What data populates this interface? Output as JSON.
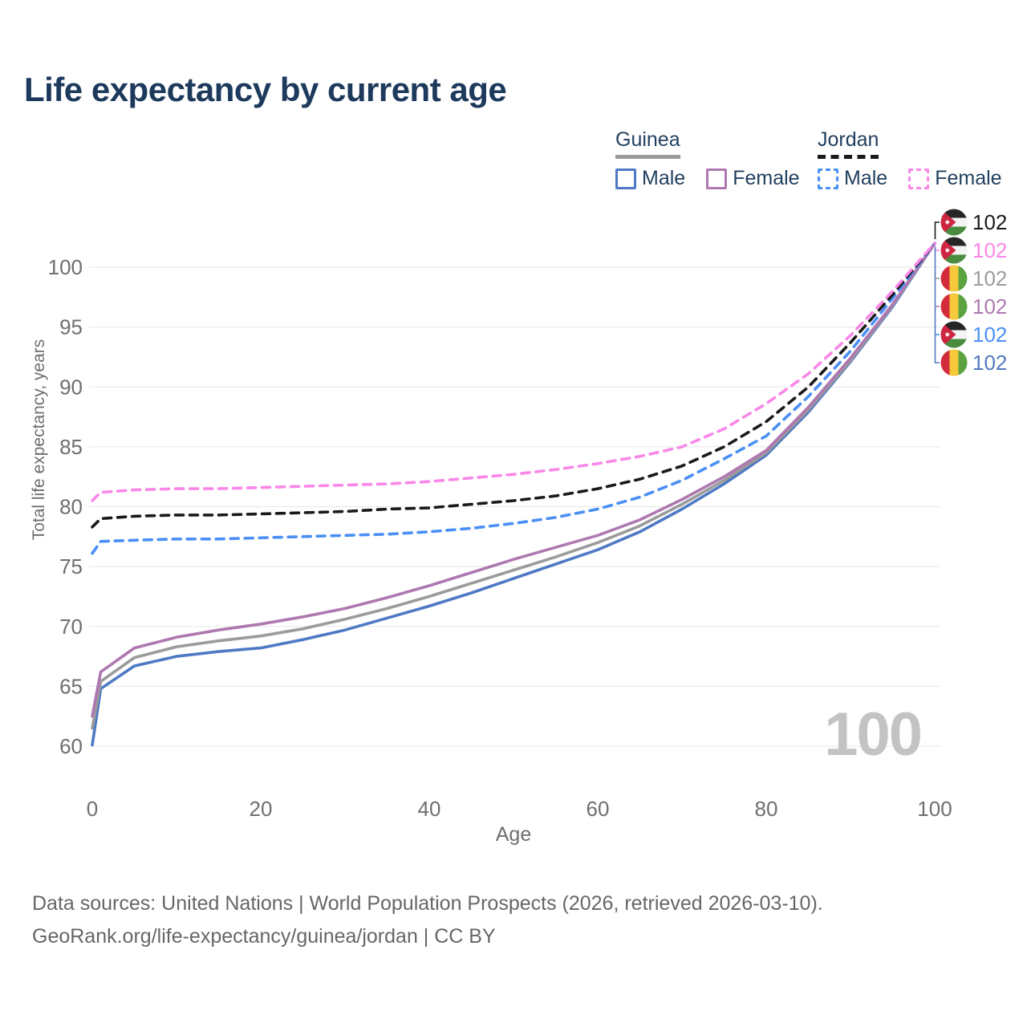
{
  "header": {
    "title": "Life expectancy by current age"
  },
  "legend": {
    "groups": [
      {
        "id": "guinea",
        "label": "Guinea",
        "line_style": "solid",
        "line_color": "#9b9b9b",
        "items": [
          {
            "label": "Male",
            "color": "#4e79c4",
            "style": "solid"
          },
          {
            "label": "Female",
            "color": "#ae78b0",
            "style": "solid"
          }
        ]
      },
      {
        "id": "jordan",
        "label": "Jordan",
        "line_style": "dashed",
        "line_color": "#1a1a1a",
        "items": [
          {
            "label": "Male",
            "color": "#4a8ff5",
            "style": "dashed"
          },
          {
            "label": "Female",
            "color": "#fa87e8",
            "style": "dashed"
          }
        ]
      }
    ]
  },
  "chart_data": {
    "type": "line",
    "title": "Life expectancy by current age",
    "xlabel": "Age",
    "ylabel": "Total life expectancy, years",
    "xlim": [
      0,
      100
    ],
    "ylim": [
      58.5,
      103.5
    ],
    "x_ticks": [
      0,
      20,
      40,
      60,
      80,
      100
    ],
    "y_ticks": [
      60,
      65,
      70,
      75,
      80,
      85,
      90,
      95,
      100
    ],
    "grid": "horizontal",
    "legend_position": "top-right",
    "watermark": "100",
    "ages": [
      0,
      1,
      5,
      10,
      15,
      20,
      25,
      30,
      35,
      40,
      45,
      50,
      55,
      60,
      65,
      70,
      75,
      80,
      85,
      90,
      95,
      100
    ],
    "series": [
      {
        "name": "Guinea Male",
        "country": "Guinea",
        "sex": "Male",
        "color": "#4e79c4",
        "dash": "solid",
        "flag_icon": "guinea-flag-icon",
        "values": [
          60.1,
          64.8,
          66.7,
          67.5,
          67.9,
          68.2,
          68.9,
          69.7,
          70.7,
          71.7,
          72.8,
          74.0,
          75.2,
          76.4,
          77.9,
          79.8,
          81.9,
          84.3,
          87.9,
          92.1,
          96.7,
          102
        ]
      },
      {
        "name": "Guinea Both sexes",
        "country": "Guinea",
        "sex": "Both",
        "color": "#9b9b9b",
        "dash": "solid",
        "flag_icon": "guinea-flag-icon",
        "values": [
          61.5,
          65.4,
          67.4,
          68.3,
          68.8,
          69.2,
          69.8,
          70.6,
          71.5,
          72.5,
          73.6,
          74.7,
          75.8,
          77.0,
          78.4,
          80.2,
          82.2,
          84.5,
          88.1,
          92.2,
          96.8,
          102
        ]
      },
      {
        "name": "Guinea Female",
        "country": "Guinea",
        "sex": "Female",
        "color": "#ae78b0",
        "dash": "solid",
        "flag_icon": "guinea-flag-icon",
        "values": [
          62.5,
          66.2,
          68.2,
          69.1,
          69.7,
          70.2,
          70.8,
          71.5,
          72.4,
          73.4,
          74.5,
          75.6,
          76.6,
          77.6,
          78.9,
          80.6,
          82.5,
          84.7,
          88.3,
          92.4,
          96.9,
          102
        ]
      },
      {
        "name": "Jordan Male",
        "country": "Jordan",
        "sex": "Male",
        "color": "#4a8ff5",
        "dash": "dashed",
        "flag_icon": "jordan-flag-icon",
        "values": [
          76.1,
          77.1,
          77.2,
          77.3,
          77.3,
          77.4,
          77.5,
          77.6,
          77.7,
          77.9,
          78.2,
          78.6,
          79.1,
          79.8,
          80.8,
          82.2,
          84.0,
          85.9,
          89.2,
          93.0,
          97.4,
          102
        ]
      },
      {
        "name": "Jordan Both sexes",
        "country": "Jordan",
        "sex": "Both",
        "color": "#1a1a1a",
        "dash": "dashed",
        "flag_icon": "jordan-flag-icon",
        "values": [
          78.3,
          79.0,
          79.2,
          79.3,
          79.3,
          79.4,
          79.5,
          79.6,
          79.8,
          79.9,
          80.2,
          80.5,
          80.9,
          81.5,
          82.3,
          83.4,
          85.0,
          87.1,
          90.0,
          93.7,
          97.7,
          102
        ]
      },
      {
        "name": "Jordan Female",
        "country": "Jordan",
        "sex": "Female",
        "color": "#fa87e8",
        "dash": "dashed",
        "flag_icon": "jordan-flag-icon",
        "values": [
          80.5,
          81.2,
          81.4,
          81.5,
          81.5,
          81.6,
          81.7,
          81.8,
          81.9,
          82.1,
          82.4,
          82.7,
          83.1,
          83.6,
          84.2,
          85.0,
          86.5,
          88.6,
          91.1,
          94.3,
          98.0,
          102
        ]
      }
    ],
    "end_labels": [
      {
        "series": "Jordan Both sexes",
        "value": "102",
        "color": "#1a1a1a",
        "flag_icon": "jordan-flag-icon"
      },
      {
        "series": "Jordan Female",
        "value": "102",
        "color": "#fa87e8",
        "flag_icon": "jordan-flag-icon"
      },
      {
        "series": "Guinea Both sexes",
        "value": "102",
        "color": "#9b9b9b",
        "flag_icon": "guinea-flag-icon"
      },
      {
        "series": "Guinea Female",
        "value": "102",
        "color": "#ae78b0",
        "flag_icon": "guinea-flag-icon"
      },
      {
        "series": "Jordan Male",
        "value": "102",
        "color": "#4a8ff5",
        "flag_icon": "jordan-flag-icon"
      },
      {
        "series": "Guinea Male",
        "value": "102",
        "color": "#5379bd",
        "flag_icon": "guinea-flag-icon"
      }
    ]
  },
  "footer": {
    "line1": "Data sources: United Nations | World Population Prospects (2026, retrieved 2026-03-10).",
    "line2": "GeoRank.org/life-expectancy/guinea/jordan | CC BY"
  }
}
